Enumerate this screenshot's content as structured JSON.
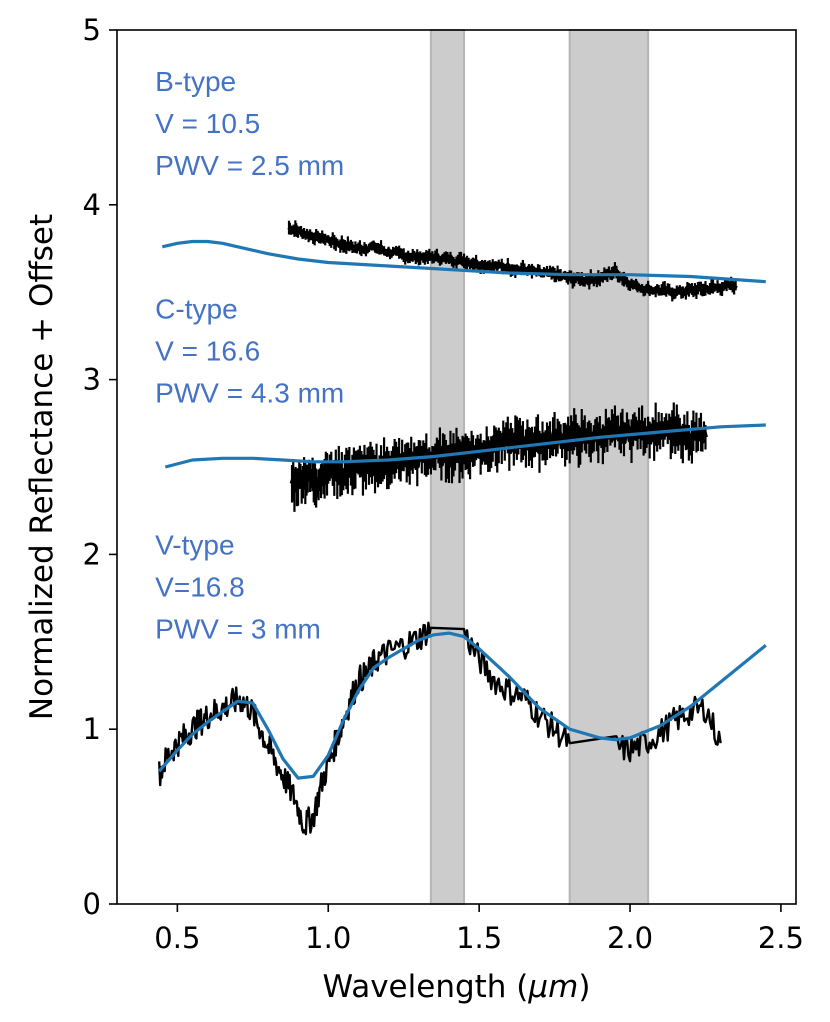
{
  "chart_data": {
    "type": "line",
    "xlabel": "Wavelength (",
    "xlabel_symbol": "μm",
    "xlabel_close": ")",
    "ylabel": "Normalized Reflectance + Offset",
    "xlim": [
      0.3,
      2.55
    ],
    "ylim": [
      0,
      5
    ],
    "xticks": [
      0.5,
      1.0,
      1.5,
      2.0,
      2.5
    ],
    "xtick_labels": [
      "0.5",
      "1.0",
      "1.5",
      "2.0",
      "2.5"
    ],
    "yticks": [
      0,
      1,
      2,
      3,
      4,
      5
    ],
    "ytick_labels": [
      "0",
      "1",
      "2",
      "3",
      "4",
      "5"
    ],
    "shaded_bands": [
      {
        "name": "telluric-band-1",
        "x0": 1.34,
        "x1": 1.45
      },
      {
        "name": "telluric-band-2",
        "x0": 1.8,
        "x1": 2.06
      }
    ],
    "annotations": [
      {
        "name": "b-type",
        "lines": [
          "B-type",
          "V = 10.5",
          "PWV = 2.5 mm"
        ],
        "x": 0.4,
        "y": 4.65
      },
      {
        "name": "c-type",
        "lines": [
          "C-type",
          "V = 16.6",
          "PWV = 4.3 mm"
        ],
        "x": 0.4,
        "y": 3.35
      },
      {
        "name": "v-type",
        "lines": [
          "V-type",
          "V=16.8",
          "PWV = 3 mm"
        ],
        "x": 0.4,
        "y": 2.0
      }
    ],
    "series": [
      {
        "name": "B-type observed",
        "role": "observed",
        "color": "#000000",
        "errorbars": true,
        "err": 0.03,
        "x": [
          0.87,
          0.9,
          0.95,
          1.0,
          1.05,
          1.1,
          1.15,
          1.2,
          1.25,
          1.3,
          1.35,
          1.4,
          1.45,
          1.5,
          1.55,
          1.6,
          1.65,
          1.7,
          1.75,
          1.8,
          1.85,
          1.9,
          1.95,
          2.0,
          2.05,
          2.1,
          2.15,
          2.2,
          2.25,
          2.3,
          2.35
        ],
        "y": [
          3.87,
          3.85,
          3.82,
          3.8,
          3.77,
          3.75,
          3.76,
          3.73,
          3.71,
          3.7,
          3.7,
          3.69,
          3.68,
          3.66,
          3.65,
          3.64,
          3.63,
          3.61,
          3.6,
          3.58,
          3.57,
          3.58,
          3.62,
          3.55,
          3.52,
          3.51,
          3.5,
          3.51,
          3.52,
          3.53,
          3.54
        ]
      },
      {
        "name": "B-type model",
        "role": "model",
        "color": "#1f77b4",
        "x": [
          0.45,
          0.5,
          0.55,
          0.6,
          0.65,
          0.7,
          0.8,
          0.9,
          1.0,
          1.2,
          1.4,
          1.6,
          1.8,
          2.0,
          2.2,
          2.45
        ],
        "y": [
          3.76,
          3.78,
          3.79,
          3.79,
          3.78,
          3.76,
          3.72,
          3.69,
          3.67,
          3.65,
          3.63,
          3.61,
          3.6,
          3.6,
          3.59,
          3.56
        ]
      },
      {
        "name": "C-type observed",
        "role": "observed",
        "color": "#000000",
        "errorbars": true,
        "err": 0.09,
        "x": [
          0.88,
          0.92,
          0.96,
          1.0,
          1.05,
          1.1,
          1.15,
          1.2,
          1.25,
          1.3,
          1.35,
          1.4,
          1.45,
          1.5,
          1.55,
          1.6,
          1.65,
          1.7,
          1.75,
          1.8,
          1.85,
          1.9,
          1.95,
          2.0,
          2.05,
          2.1,
          2.15,
          2.2,
          2.25
        ],
        "y": [
          2.4,
          2.45,
          2.42,
          2.48,
          2.47,
          2.5,
          2.49,
          2.52,
          2.53,
          2.55,
          2.56,
          2.57,
          2.58,
          2.6,
          2.62,
          2.64,
          2.65,
          2.64,
          2.66,
          2.67,
          2.66,
          2.68,
          2.69,
          2.7,
          2.71,
          2.7,
          2.69,
          2.68,
          2.67
        ]
      },
      {
        "name": "C-type model",
        "role": "model",
        "color": "#1f77b4",
        "x": [
          0.46,
          0.55,
          0.65,
          0.75,
          0.85,
          0.95,
          1.05,
          1.2,
          1.35,
          1.5,
          1.7,
          1.9,
          2.1,
          2.3,
          2.45
        ],
        "y": [
          2.5,
          2.54,
          2.55,
          2.55,
          2.54,
          2.53,
          2.53,
          2.54,
          2.56,
          2.59,
          2.63,
          2.67,
          2.7,
          2.73,
          2.74
        ]
      },
      {
        "name": "V-type observed",
        "role": "observed",
        "color": "#000000",
        "noisy": true,
        "x": [
          0.44,
          0.47,
          0.5,
          0.53,
          0.56,
          0.59,
          0.62,
          0.65,
          0.68,
          0.71,
          0.74,
          0.77,
          0.8,
          0.83,
          0.86,
          0.89,
          0.92,
          0.95,
          0.98,
          1.01,
          1.04,
          1.07,
          1.1,
          1.13,
          1.16,
          1.2,
          1.25,
          1.3,
          1.34,
          1.45,
          1.5,
          1.55,
          1.6,
          1.65,
          1.7,
          1.75,
          1.8,
          1.95,
          2.0,
          2.05,
          2.1,
          2.15,
          2.2,
          2.25,
          2.3
        ],
        "y": [
          0.75,
          0.85,
          0.92,
          0.97,
          1.02,
          1.06,
          1.1,
          1.12,
          1.15,
          1.17,
          1.12,
          1.02,
          0.9,
          0.8,
          0.7,
          0.6,
          0.45,
          0.5,
          0.7,
          0.85,
          1.0,
          1.15,
          1.28,
          1.32,
          1.4,
          1.44,
          1.48,
          1.52,
          1.58,
          1.55,
          1.4,
          1.28,
          1.22,
          1.18,
          1.08,
          1.0,
          0.92,
          0.9,
          0.88,
          0.92,
          0.98,
          1.05,
          1.1,
          1.12,
          0.92
        ]
      },
      {
        "name": "V-type model",
        "role": "model",
        "color": "#1f77b4",
        "x": [
          0.44,
          0.5,
          0.55,
          0.6,
          0.65,
          0.7,
          0.75,
          0.8,
          0.85,
          0.9,
          0.95,
          1.0,
          1.05,
          1.1,
          1.15,
          1.2,
          1.25,
          1.3,
          1.35,
          1.4,
          1.45,
          1.5,
          1.6,
          1.7,
          1.8,
          1.9,
          1.95,
          2.0,
          2.1,
          2.2,
          2.3,
          2.45
        ],
        "y": [
          0.76,
          0.88,
          0.97,
          1.04,
          1.1,
          1.16,
          1.15,
          1.0,
          0.83,
          0.72,
          0.73,
          0.85,
          1.05,
          1.22,
          1.35,
          1.41,
          1.46,
          1.51,
          1.54,
          1.55,
          1.53,
          1.46,
          1.3,
          1.12,
          1.0,
          0.95,
          0.94,
          0.95,
          1.02,
          1.13,
          1.27,
          1.48
        ]
      }
    ]
  }
}
